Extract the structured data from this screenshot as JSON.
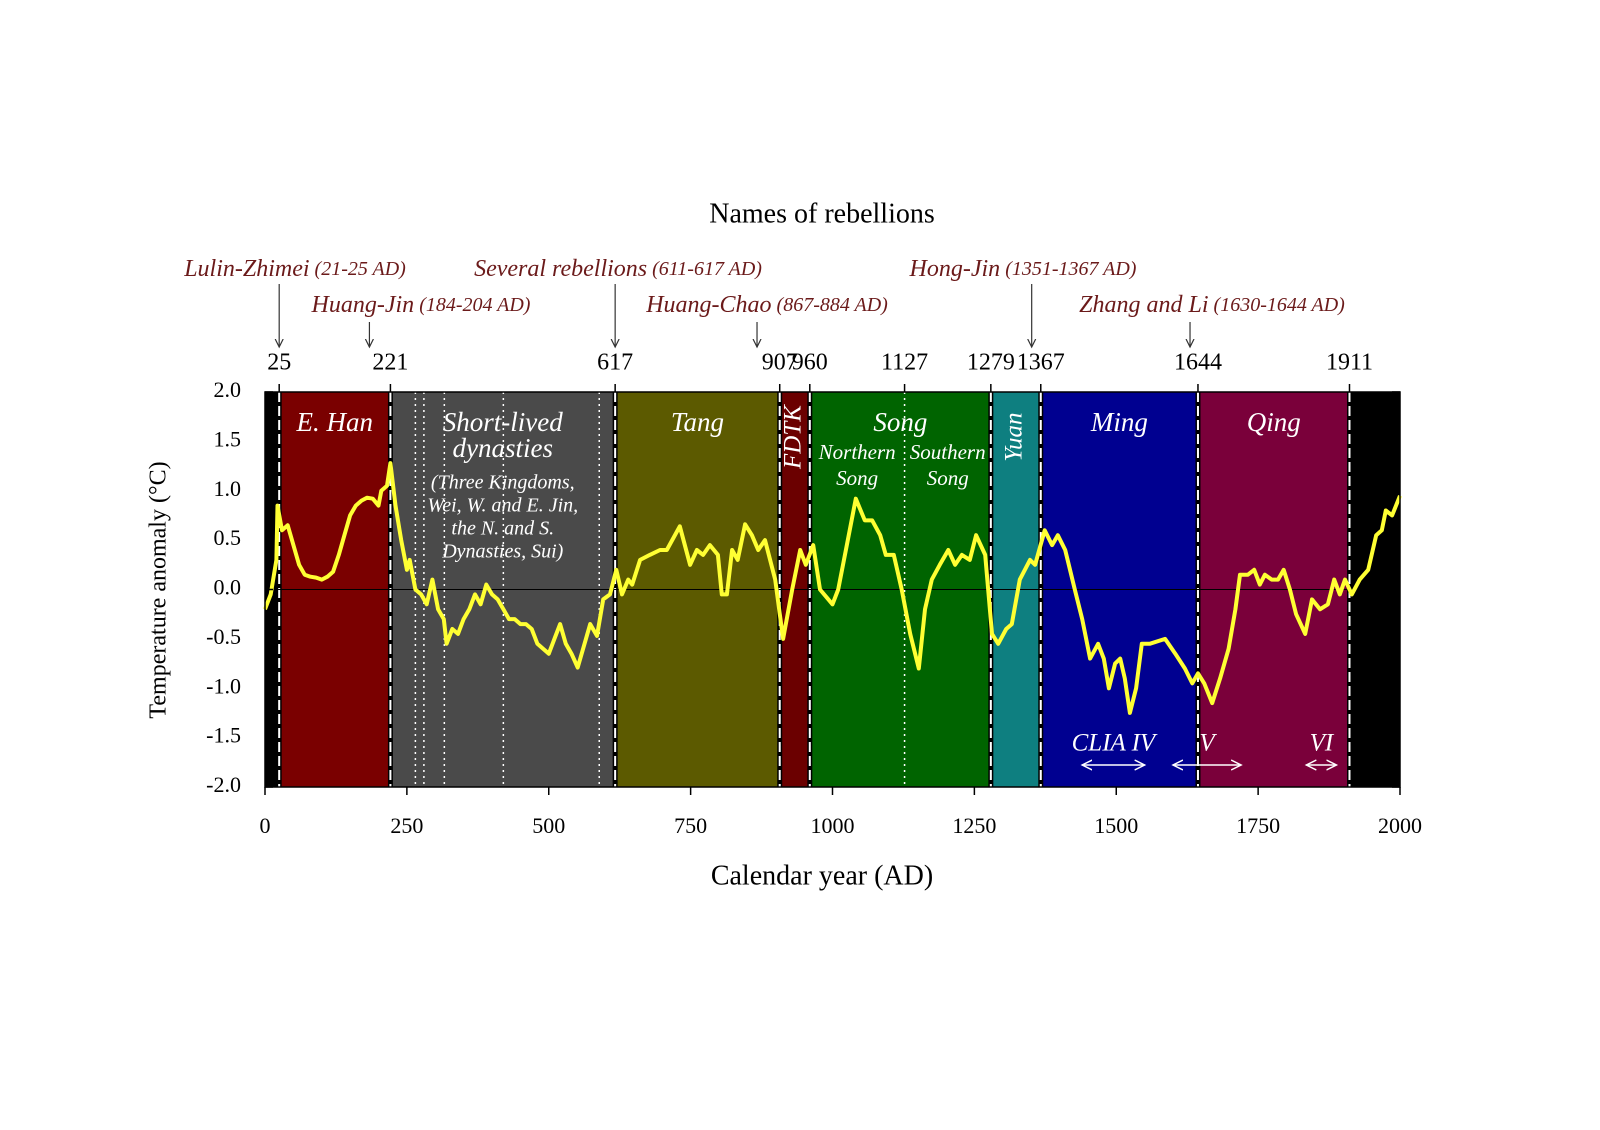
{
  "chart_data": {
    "type": "line",
    "title": "Names of rebellions",
    "x_label": "Calendar year (AD)",
    "y_label": "Temperature anomaly (°C)",
    "color": "#ffff33",
    "xlim": [
      0,
      2000
    ],
    "xticks": [
      0,
      250,
      500,
      750,
      1000,
      1250,
      1500,
      1750,
      2000
    ],
    "ylim": [
      -2,
      2
    ],
    "yticks": [
      {
        "value": -2,
        "label": "-2.0"
      },
      {
        "value": -1.5,
        "label": "-1.5"
      },
      {
        "value": -1,
        "label": "-1.0"
      },
      {
        "value": -0.5,
        "label": "-0.5"
      },
      {
        "value": 0,
        "label": "0.0"
      },
      {
        "value": 0.5,
        "label": "0.5"
      },
      {
        "value": 1,
        "label": "1.0"
      },
      {
        "value": 1.5,
        "label": "1.5"
      },
      {
        "value": 2,
        "label": "2.0"
      }
    ],
    "zero_line": true,
    "top_ticks": [
      25,
      221,
      617,
      907,
      960,
      1127,
      1279,
      1367,
      1644,
      1911
    ],
    "periods": [
      {
        "start": 0,
        "end": 25,
        "color": "#000000"
      },
      {
        "start": 25,
        "end": 221,
        "color": "#7a0000",
        "label": [
          "E. Han"
        ]
      },
      {
        "start": 221,
        "end": 617,
        "color": "#4a4a4a",
        "label": [
          "Short-lived",
          "dynasties"
        ],
        "note": [
          "(Three Kingdoms,",
          "Wei, W. and E. Jin,",
          "the N. and S.",
          "Dynasties, Sui)"
        ]
      },
      {
        "start": 617,
        "end": 907,
        "color": "#5c5a00",
        "label": [
          "Tang"
        ]
      },
      {
        "start": 907,
        "end": 960,
        "color": "#6b0000",
        "label": [
          "FDTK"
        ],
        "vertical": true
      },
      {
        "start": 960,
        "end": 1279,
        "color": "#006400",
        "label": [
          "Song"
        ],
        "sub_labels": [
          [
            "Northern",
            "Song"
          ],
          [
            "Southern",
            "Song"
          ]
        ]
      },
      {
        "start": 1279,
        "end": 1367,
        "color": "#0e7f80",
        "label": [
          "Yuan"
        ],
        "vertical": true
      },
      {
        "start": 1367,
        "end": 1644,
        "color": "#000090",
        "label": [
          "Ming"
        ]
      },
      {
        "start": 1644,
        "end": 1911,
        "color": "#7a003a",
        "label": [
          "Qing"
        ]
      },
      {
        "start": 1911,
        "end": 2000,
        "color": "#000000"
      }
    ],
    "dividers": [
      265,
      280,
      316,
      420,
      589,
      1127
    ],
    "rebellions": [
      {
        "name": "Lulin-Zhimei",
        "period": "(21-25 AD)",
        "year": 25
      },
      {
        "name": "Huang-Jin",
        "period": "(184-204 AD)",
        "year": 184
      },
      {
        "name": "Several rebellions",
        "period": "(611-617 AD)",
        "year": 617
      },
      {
        "name": "Huang-Chao",
        "period": "(867-884 AD)",
        "year": 867
      },
      {
        "name": "Hong-Jin",
        "period": "(1351-1367 AD)",
        "year": 1351
      },
      {
        "name": "Zhang and Li",
        "period": "(1630-1644 AD)",
        "year": 1630
      }
    ],
    "cold_phases": [
      {
        "label": "CLIA IV",
        "start": 1440,
        "end": 1550
      },
      {
        "label": "V",
        "start": 1600,
        "end": 1720
      },
      {
        "label": "VI",
        "start": 1835,
        "end": 1888
      }
    ],
    "x": [
      0,
      10,
      20,
      22,
      30,
      40,
      50,
      60,
      70,
      80,
      90,
      100,
      110,
      120,
      130,
      140,
      150,
      160,
      170,
      180,
      190,
      200,
      205,
      215,
      221,
      230,
      240,
      250,
      255,
      265,
      275,
      285,
      295,
      305,
      315,
      320,
      330,
      340,
      350,
      360,
      370,
      380,
      390,
      400,
      410,
      420,
      430,
      440,
      450,
      460,
      470,
      480,
      490,
      500,
      510,
      520,
      530,
      540,
      551,
      573,
      585,
      596,
      608,
      619,
      629,
      640,
      647,
      661,
      678,
      696,
      708,
      731,
      749,
      761,
      772,
      784,
      798,
      805,
      814,
      823,
      833,
      846,
      858,
      869,
      881,
      899,
      913,
      929,
      943,
      953,
      966,
      978,
      1000,
      1010,
      1027,
      1041,
      1057,
      1070,
      1084,
      1094,
      1108,
      1122,
      1137,
      1152,
      1163,
      1175,
      1189,
      1204,
      1216,
      1228,
      1242,
      1253,
      1269,
      1281,
      1292,
      1306,
      1316,
      1330,
      1348,
      1357,
      1374,
      1387,
      1397,
      1410,
      1427,
      1440,
      1454,
      1468,
      1478,
      1487,
      1498,
      1507,
      1515,
      1524,
      1535,
      1545,
      1559,
      1586,
      1604,
      1621,
      1634,
      1644,
      1655,
      1669,
      1683,
      1698,
      1710,
      1718,
      1732,
      1743,
      1753,
      1762,
      1774,
      1785,
      1795,
      1806,
      1817,
      1833,
      1845,
      1859,
      1873,
      1884,
      1894,
      1903,
      1915,
      1929,
      1944,
      1958,
      1968,
      1975,
      1986,
      2000
    ],
    "values": [
      -0.2,
      -0.05,
      0.3,
      0.85,
      0.6,
      0.65,
      0.45,
      0.25,
      0.15,
      0.13,
      0.12,
      0.1,
      0.13,
      0.18,
      0.35,
      0.55,
      0.75,
      0.85,
      0.9,
      0.93,
      0.92,
      0.85,
      1.0,
      1.05,
      1.28,
      0.85,
      0.5,
      0.2,
      0.3,
      0.0,
      -0.05,
      -0.15,
      0.1,
      -0.2,
      -0.3,
      -0.55,
      -0.4,
      -0.45,
      -0.3,
      -0.2,
      -0.05,
      -0.15,
      0.05,
      -0.05,
      -0.1,
      -0.2,
      -0.3,
      -0.3,
      -0.35,
      -0.35,
      -0.4,
      -0.55,
      -0.6,
      -0.65,
      -0.5,
      -0.35,
      -0.55,
      -0.65,
      -0.79,
      -0.35,
      -0.47,
      -0.1,
      -0.05,
      0.2,
      -0.05,
      0.1,
      0.05,
      0.3,
      0.35,
      0.4,
      0.4,
      0.64,
      0.25,
      0.4,
      0.35,
      0.45,
      0.35,
      -0.05,
      -0.05,
      0.4,
      0.3,
      0.66,
      0.55,
      0.4,
      0.5,
      0.1,
      -0.5,
      0.0,
      0.4,
      0.25,
      0.45,
      0.0,
      -0.15,
      0.0,
      0.5,
      0.92,
      0.7,
      0.7,
      0.55,
      0.35,
      0.35,
      0.0,
      -0.45,
      -0.8,
      -0.2,
      0.1,
      0.25,
      0.4,
      0.25,
      0.35,
      0.3,
      0.55,
      0.35,
      -0.45,
      -0.55,
      -0.4,
      -0.35,
      0.1,
      0.3,
      0.25,
      0.6,
      0.45,
      0.55,
      0.4,
      0.0,
      -0.3,
      -0.7,
      -0.55,
      -0.7,
      -1.0,
      -0.75,
      -0.7,
      -0.9,
      -1.25,
      -1.0,
      -0.55,
      -0.55,
      -0.5,
      -0.65,
      -0.8,
      -0.95,
      -0.85,
      -0.95,
      -1.15,
      -0.9,
      -0.6,
      -0.2,
      0.15,
      0.15,
      0.2,
      0.05,
      0.15,
      0.1,
      0.1,
      0.2,
      0.0,
      -0.25,
      -0.45,
      -0.1,
      -0.2,
      -0.15,
      0.1,
      -0.05,
      0.1,
      -0.05,
      0.1,
      0.2,
      0.55,
      0.6,
      0.8,
      0.75,
      0.95
    ]
  }
}
